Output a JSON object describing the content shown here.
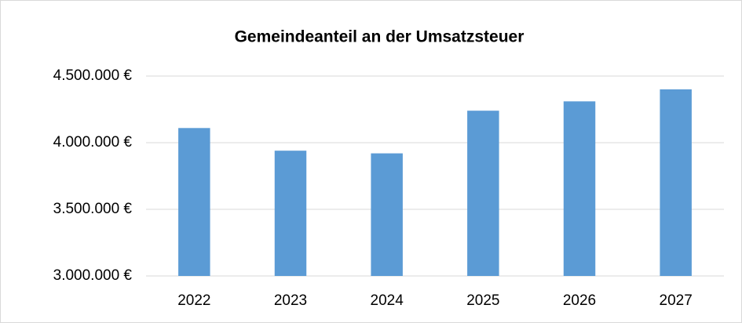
{
  "chart_data": {
    "type": "bar",
    "title": "Gemeindeanteil an der Umsatzsteuer",
    "categories": [
      "2022",
      "2023",
      "2024",
      "2025",
      "2026",
      "2027"
    ],
    "values": [
      4110000,
      3940000,
      3920000,
      4240000,
      4310000,
      4400000
    ],
    "color": "#5b9bd5",
    "ylim": [
      3000000,
      4500000
    ],
    "yticks": [
      {
        "value": 3000000,
        "label": "3.000.000 €"
      },
      {
        "value": 3500000,
        "label": "3.500.000 €"
      },
      {
        "value": 4000000,
        "label": "4.000.000 €"
      },
      {
        "value": 4500000,
        "label": "4.500.000 €"
      }
    ],
    "grid": true
  }
}
